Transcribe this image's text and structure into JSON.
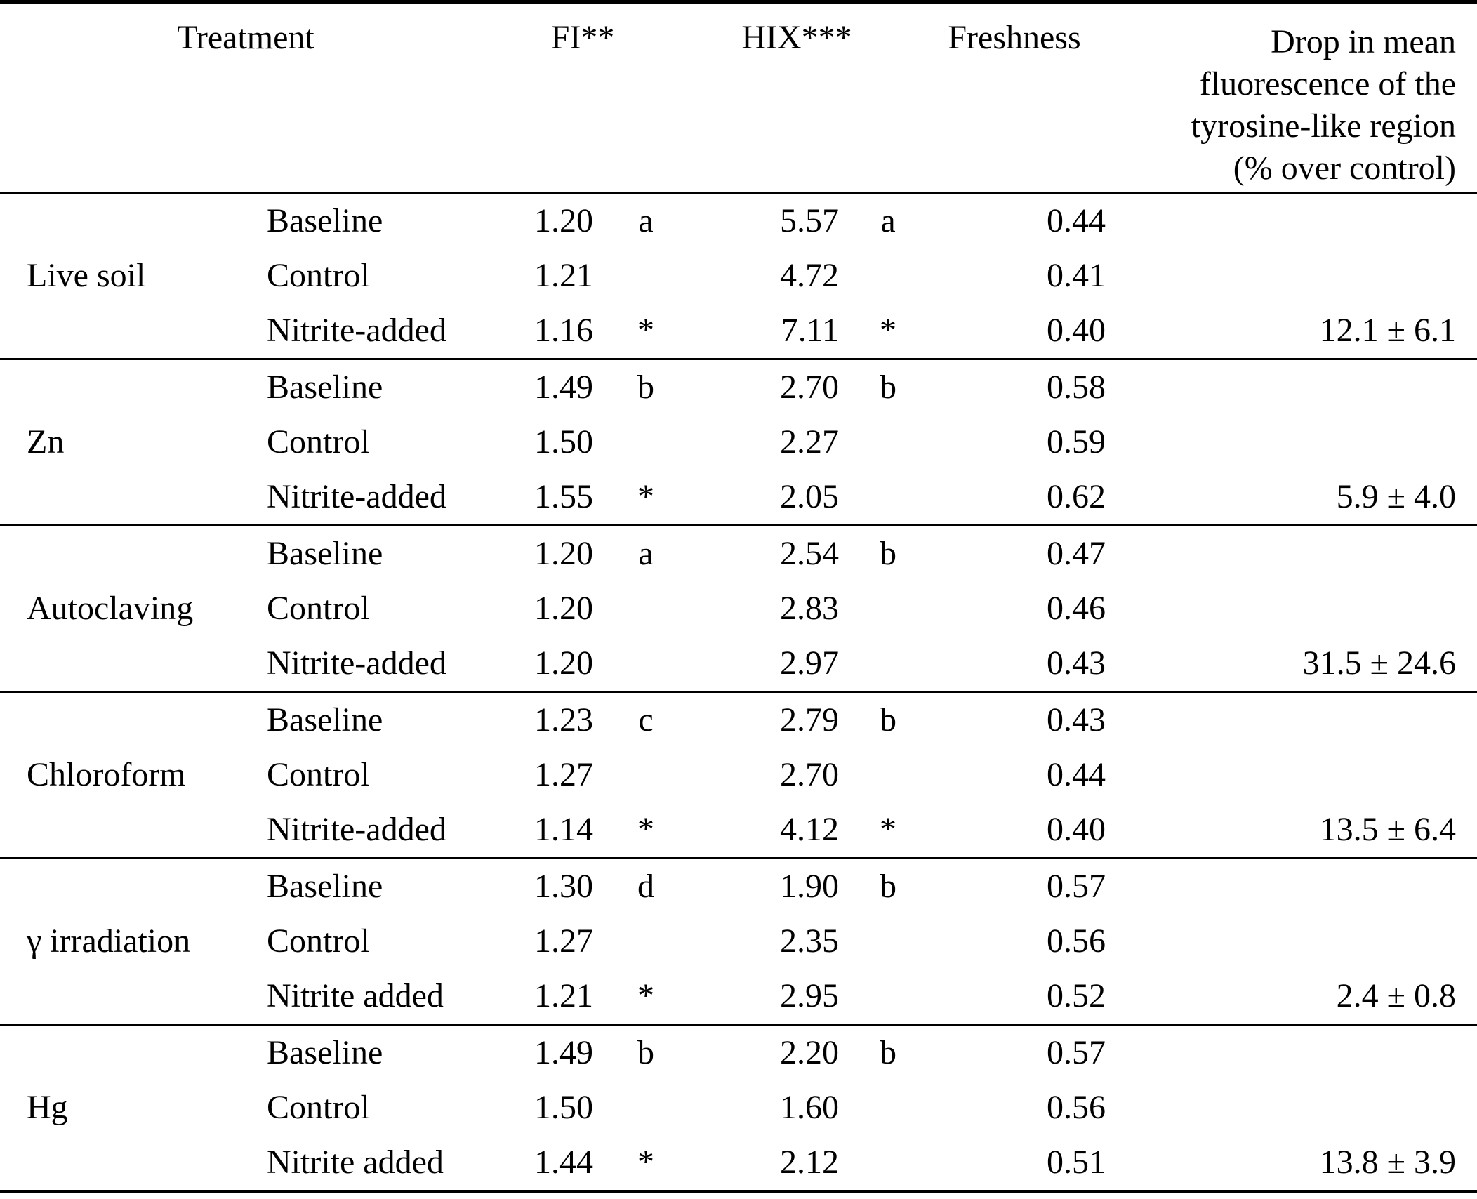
{
  "table": {
    "headers": {
      "treatment": "Treatment",
      "fi": "FI**",
      "hix": "HIX***",
      "freshness": "Freshness",
      "drop_lines": {
        "0": "Drop in mean",
        "1": "fluorescence of the",
        "2": "tyrosine-like region",
        "3": "(% over control)"
      }
    },
    "groups": [
      {
        "name": "Live soil",
        "rows": [
          {
            "condition": "Baseline",
            "fi": "1.20",
            "fi_sig": "a",
            "hix": "5.57",
            "hix_sig": "a",
            "freshness": "0.44",
            "drop": ""
          },
          {
            "condition": "Control",
            "fi": "1.21",
            "fi_sig": "",
            "hix": "4.72",
            "hix_sig": "",
            "freshness": "0.41",
            "drop": ""
          },
          {
            "condition": "Nitrite-added",
            "fi": "1.16",
            "fi_sig": "*",
            "hix": "7.11",
            "hix_sig": "*",
            "freshness": "0.40",
            "drop": "12.1 ± 6.1"
          }
        ]
      },
      {
        "name": "Zn",
        "rows": [
          {
            "condition": "Baseline",
            "fi": "1.49",
            "fi_sig": "b",
            "hix": "2.70",
            "hix_sig": "b",
            "freshness": "0.58",
            "drop": ""
          },
          {
            "condition": "Control",
            "fi": "1.50",
            "fi_sig": "",
            "hix": "2.27",
            "hix_sig": "",
            "freshness": "0.59",
            "drop": ""
          },
          {
            "condition": "Nitrite-added",
            "fi": "1.55",
            "fi_sig": "*",
            "hix": "2.05",
            "hix_sig": "",
            "freshness": "0.62",
            "drop": "5.9 ± 4.0"
          }
        ]
      },
      {
        "name": "Autoclaving",
        "rows": [
          {
            "condition": "Baseline",
            "fi": "1.20",
            "fi_sig": "a",
            "hix": "2.54",
            "hix_sig": "b",
            "freshness": "0.47",
            "drop": ""
          },
          {
            "condition": "Control",
            "fi": "1.20",
            "fi_sig": "",
            "hix": "2.83",
            "hix_sig": "",
            "freshness": "0.46",
            "drop": ""
          },
          {
            "condition": "Nitrite-added",
            "fi": "1.20",
            "fi_sig": "",
            "hix": "2.97",
            "hix_sig": "",
            "freshness": "0.43",
            "drop": "31.5 ± 24.6"
          }
        ]
      },
      {
        "name": "Chloroform",
        "rows": [
          {
            "condition": "Baseline",
            "fi": "1.23",
            "fi_sig": "c",
            "hix": "2.79",
            "hix_sig": "b",
            "freshness": "0.43",
            "drop": ""
          },
          {
            "condition": "Control",
            "fi": "1.27",
            "fi_sig": "",
            "hix": "2.70",
            "hix_sig": "",
            "freshness": "0.44",
            "drop": ""
          },
          {
            "condition": "Nitrite-added",
            "fi": "1.14",
            "fi_sig": "*",
            "hix": "4.12",
            "hix_sig": "*",
            "freshness": "0.40",
            "drop": "13.5 ± 6.4"
          }
        ]
      },
      {
        "name": "γ irradiation",
        "rows": [
          {
            "condition": "Baseline",
            "fi": "1.30",
            "fi_sig": "d",
            "hix": "1.90",
            "hix_sig": "b",
            "freshness": "0.57",
            "drop": ""
          },
          {
            "condition": "Control",
            "fi": "1.27",
            "fi_sig": "",
            "hix": "2.35",
            "hix_sig": "",
            "freshness": "0.56",
            "drop": ""
          },
          {
            "condition": "Nitrite added",
            "fi": "1.21",
            "fi_sig": "*",
            "hix": "2.95",
            "hix_sig": "",
            "freshness": "0.52",
            "drop": "2.4 ± 0.8"
          }
        ]
      },
      {
        "name": "Hg",
        "rows": [
          {
            "condition": "Baseline",
            "fi": "1.49",
            "fi_sig": "b",
            "hix": "2.20",
            "hix_sig": "b",
            "freshness": "0.57",
            "drop": ""
          },
          {
            "condition": "Control",
            "fi": "1.50",
            "fi_sig": "",
            "hix": "1.60",
            "hix_sig": "",
            "freshness": "0.56",
            "drop": ""
          },
          {
            "condition": "Nitrite added",
            "fi": "1.44",
            "fi_sig": "*",
            "hix": "2.12",
            "hix_sig": "",
            "freshness": "0.51",
            "drop": "13.8 ± 3.9"
          }
        ]
      }
    ]
  }
}
